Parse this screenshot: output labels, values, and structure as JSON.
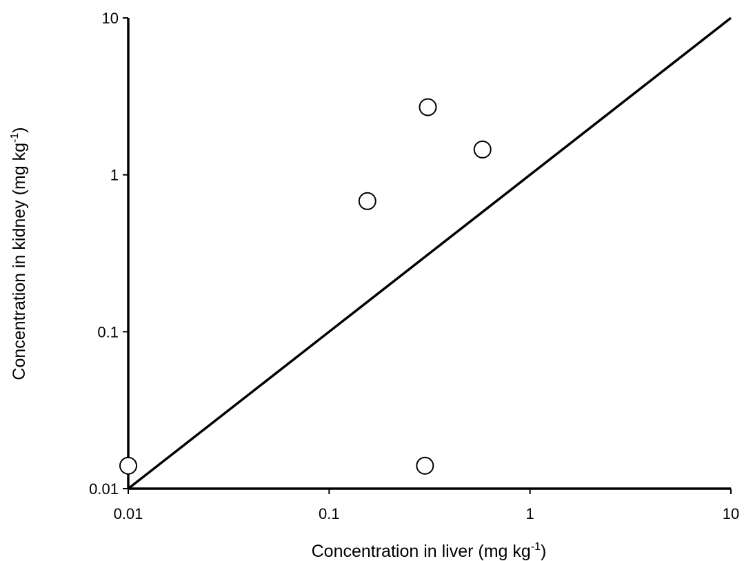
{
  "chart_data": {
    "type": "scatter",
    "title": "",
    "xlabel": {
      "text": "Concentration in liver (mg kg",
      "sup": "-1",
      "tail": ")"
    },
    "ylabel": {
      "text": "Concentration in kidney (mg kg",
      "sup": "-1",
      "tail": ")"
    },
    "x_scale": "log",
    "y_scale": "log",
    "xlim": [
      0.01,
      10
    ],
    "ylim": [
      0.01,
      10
    ],
    "x_ticks": [
      0.01,
      0.1,
      1,
      10
    ],
    "y_ticks": [
      0.01,
      0.1,
      1,
      10
    ],
    "x_tick_labels": [
      "0.01",
      "0.1",
      "1",
      "10"
    ],
    "y_tick_labels": [
      "0.01",
      "0.1",
      "1",
      "10"
    ],
    "grid": false,
    "legend": "none",
    "marker": "open-circle",
    "points": [
      {
        "x": 0.01,
        "y": 0.014
      },
      {
        "x": 0.155,
        "y": 0.68
      },
      {
        "x": 0.31,
        "y": 2.7
      },
      {
        "x": 0.3,
        "y": 0.014
      },
      {
        "x": 0.58,
        "y": 1.45
      }
    ],
    "reference_line": {
      "type": "1:1",
      "from": [
        0.01,
        0.01
      ],
      "to": [
        10,
        10
      ]
    }
  }
}
